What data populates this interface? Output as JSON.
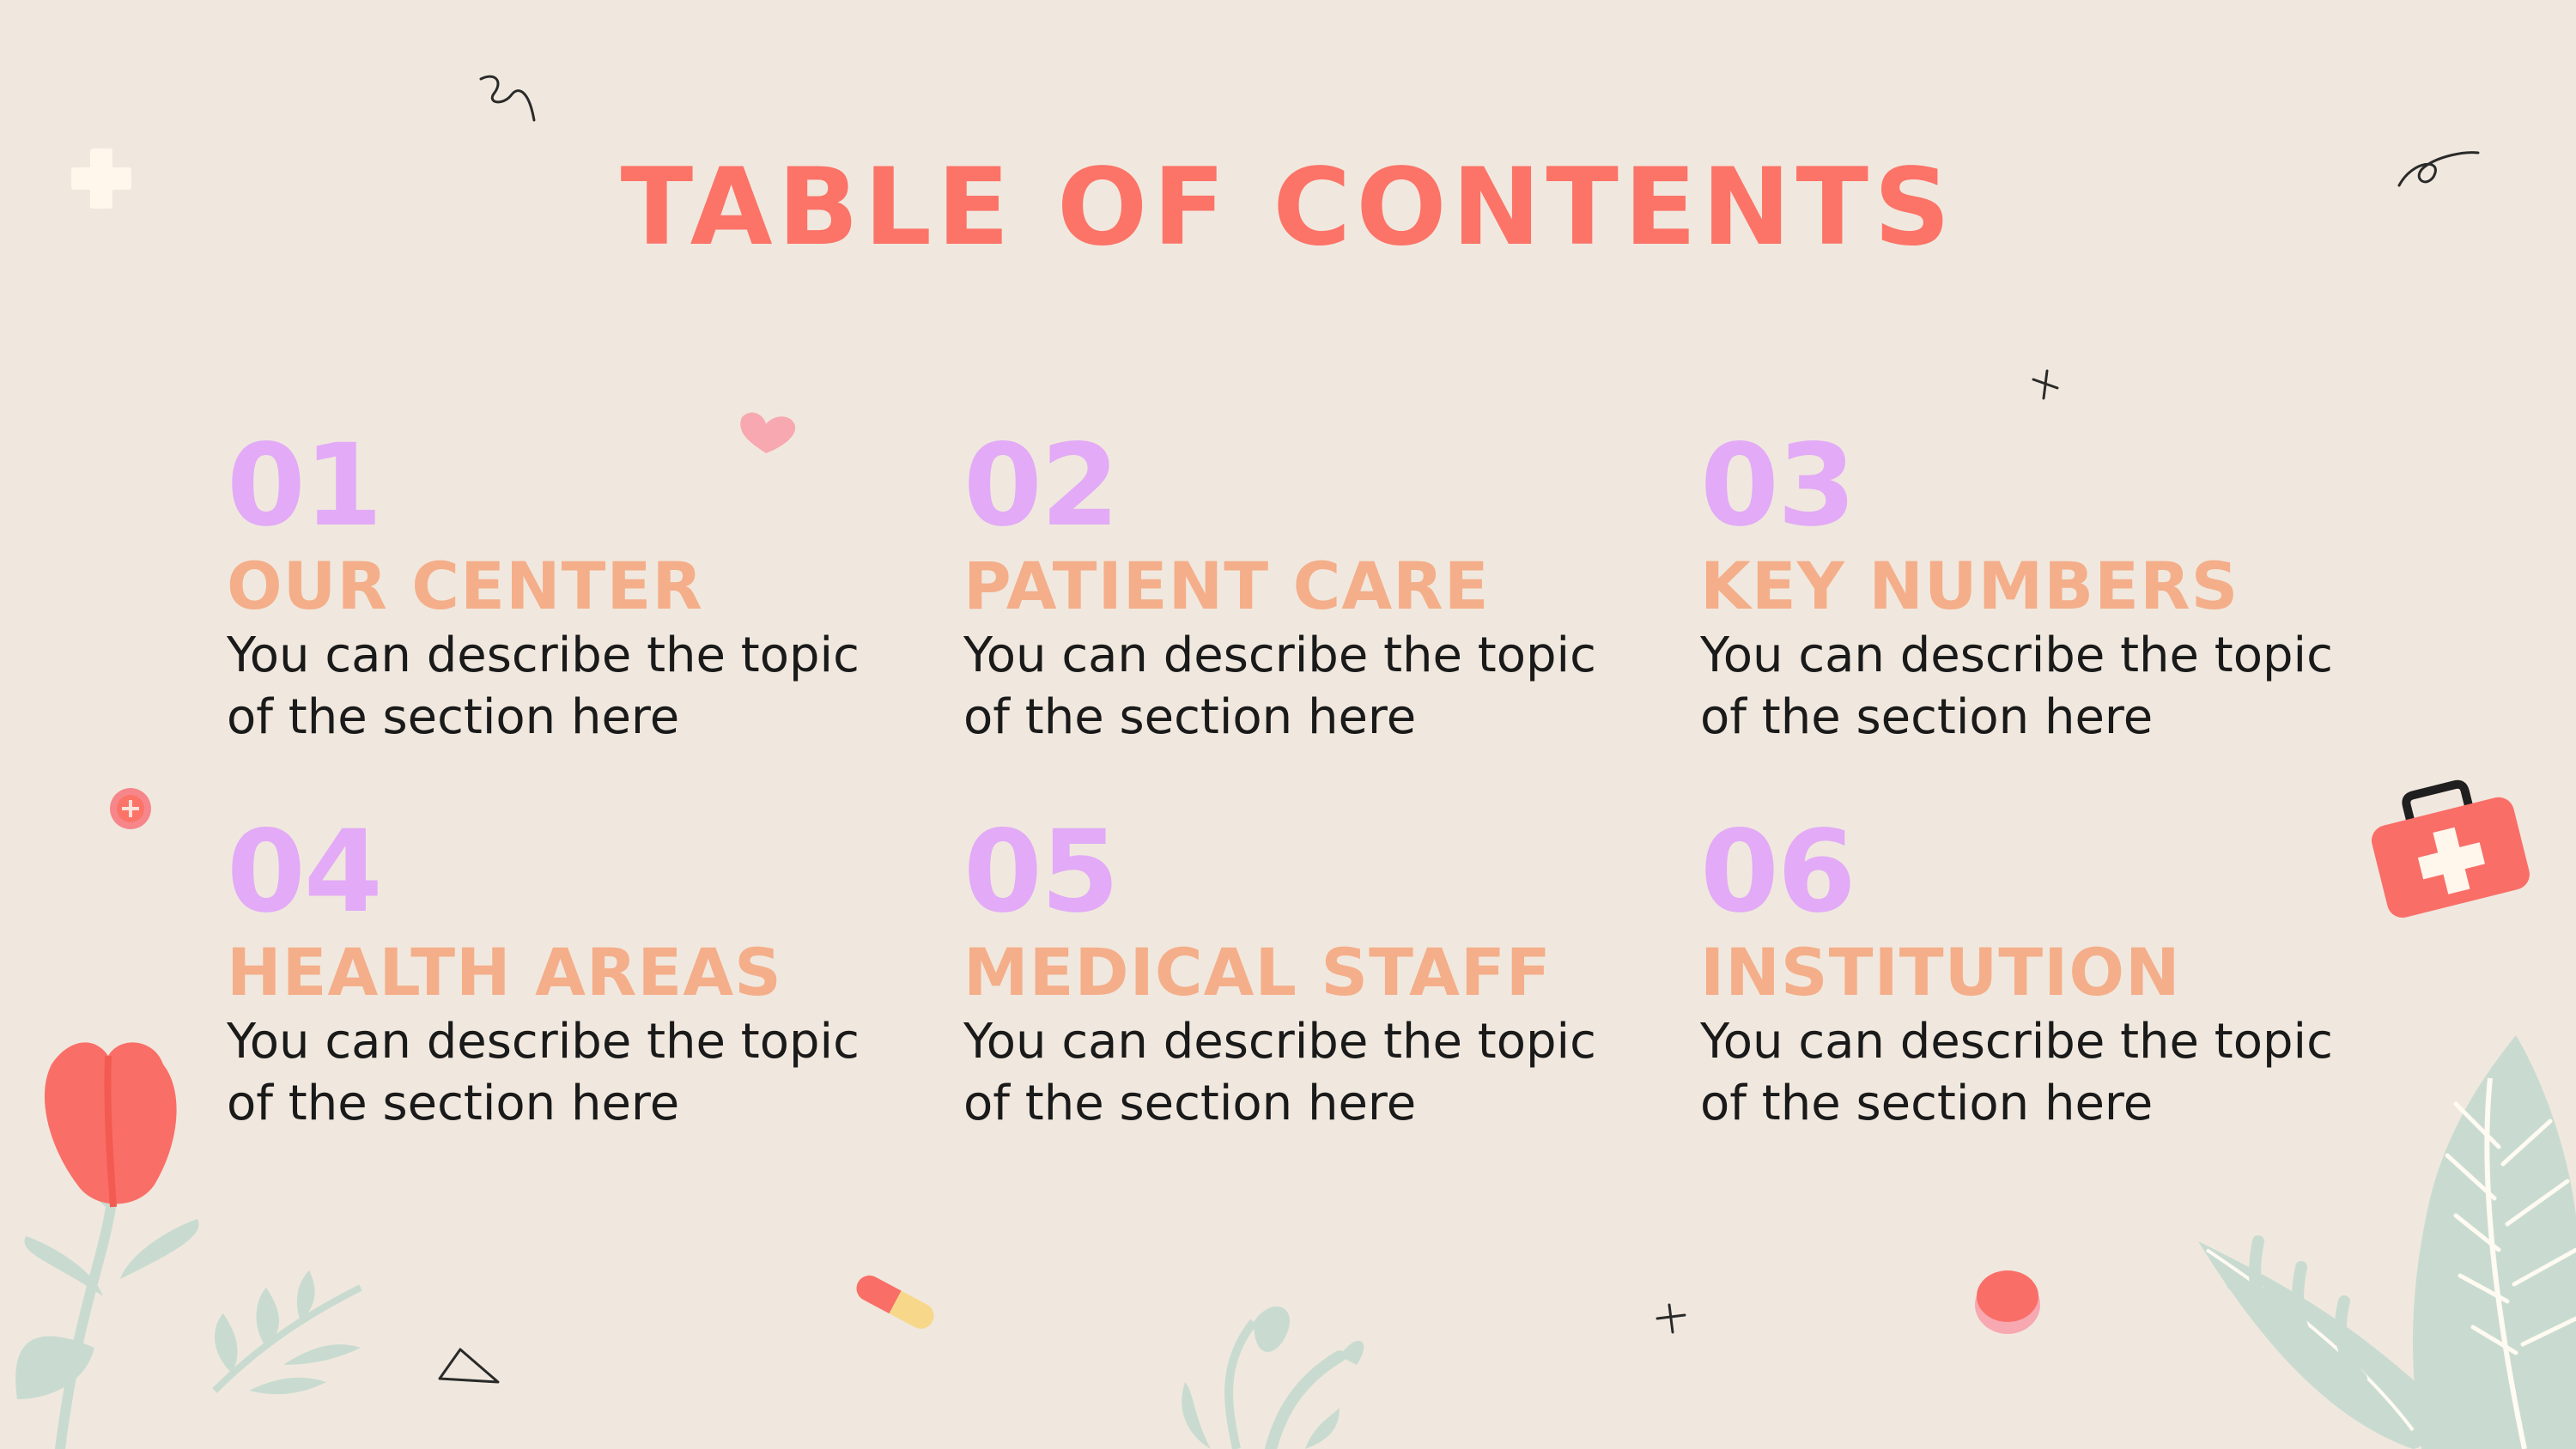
{
  "slide": {
    "title": "TABLE OF CONTENTS",
    "sections": [
      {
        "number": "01",
        "heading": "OUR CENTER",
        "description": "You can describe the topic of the section here"
      },
      {
        "number": "02",
        "heading": "PATIENT CARE",
        "description": "You can describe the topic of the section here"
      },
      {
        "number": "03",
        "heading": "KEY NUMBERS",
        "description": "You can describe the topic of the section here"
      },
      {
        "number": "04",
        "heading": "HEALTH AREAS",
        "description": "You can describe the topic of the section here"
      },
      {
        "number": "05",
        "heading": "MEDICAL STAFF",
        "description": "You can describe the topic of the section here"
      },
      {
        "number": "06",
        "heading": "INSTITUTION",
        "description": "You can describe the topic of the section here"
      }
    ]
  },
  "colors": {
    "background": "#f0e8de",
    "title": "#fc7368",
    "number": "#e2aaf7",
    "heading": "#f4ae8a",
    "body_text": "#1a1a1a",
    "leaf": "#c9dbd0"
  },
  "decorations": [
    "plus-icon",
    "swirl-icon",
    "heart-icon",
    "cross-mark-icon",
    "pill-badge-icon",
    "first-aid-kit-icon",
    "flower-icon",
    "leaf-icon",
    "capsule-icon",
    "triangle-icon",
    "round-pill-icon",
    "monstera-leaf-icon"
  ]
}
